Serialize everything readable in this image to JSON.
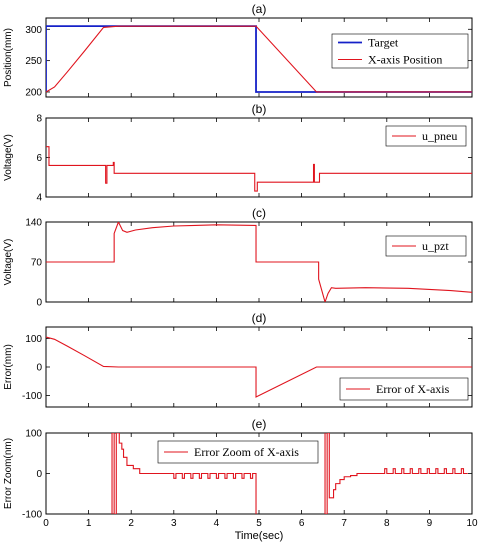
{
  "colors": {
    "red": "#e0141e",
    "blue": "#1520c8"
  },
  "xlabel": "Time(sec)",
  "x_ticks": [
    "0",
    "1",
    "2",
    "3",
    "4",
    "5",
    "6",
    "7",
    "8",
    "9",
    "10"
  ],
  "chart_data": [
    {
      "type": "line",
      "label": "(a)",
      "ylabel": "Position(mm)",
      "ylim": [
        192,
        318
      ],
      "yticks": [
        200,
        250,
        300
      ],
      "legend_placement": "top-right",
      "series": [
        {
          "name": "Target",
          "color": "#1520c8",
          "x": [
            0,
            0,
            4.93,
            4.93,
            10
          ],
          "y": [
            200,
            305,
            305,
            200,
            200
          ]
        },
        {
          "name": "X-axis Position",
          "color": "#e0141e",
          "x": [
            0,
            0.2,
            0.5,
            0.9,
            1.35,
            1.7,
            4.93,
            6.35,
            10
          ],
          "y": [
            200,
            208,
            232,
            265,
            303,
            305,
            305,
            200,
            200
          ]
        }
      ]
    },
    {
      "type": "line",
      "label": "(b)",
      "ylabel": "Voltage(V)",
      "ylim": [
        4,
        8
      ],
      "yticks": [
        4,
        6,
        8
      ],
      "legend_placement": "top-right",
      "series": [
        {
          "name": "u_pneu",
          "color": "#e0141e",
          "x": [
            0,
            0.07,
            0.07,
            1.4,
            1.4,
            1.43,
            1.43,
            1.58,
            1.58,
            1.6,
            1.6,
            1.62,
            1.62,
            4.9,
            4.9,
            4.96,
            4.96,
            5.0,
            5.0,
            6.28,
            6.28,
            6.3,
            6.3,
            6.42,
            6.42,
            6.45,
            6.45,
            10
          ],
          "y": [
            6.55,
            6.55,
            5.6,
            5.6,
            4.7,
            4.7,
            5.6,
            5.6,
            5.75,
            5.75,
            5.2,
            5.2,
            5.2,
            5.2,
            4.3,
            4.3,
            4.75,
            4.75,
            4.75,
            4.75,
            5.65,
            5.65,
            4.75,
            4.75,
            5.2,
            5.2,
            5.2,
            5.2
          ]
        }
      ]
    },
    {
      "type": "line",
      "label": "(c)",
      "ylabel": "Voltage(V)",
      "ylim": [
        0,
        140
      ],
      "yticks": [
        0,
        70,
        140
      ],
      "legend_placement": "top-right",
      "series": [
        {
          "name": "u_pzt",
          "color": "#e0141e",
          "x": [
            0,
            1.6,
            1.6,
            1.7,
            1.8,
            1.9,
            2.1,
            2.5,
            3.0,
            3.5,
            4.0,
            4.9,
            4.93,
            4.93,
            6.4,
            6.4,
            6.55,
            6.62,
            6.7,
            6.8,
            7.5,
            8.5,
            9.5,
            10
          ],
          "y": [
            70,
            70,
            120,
            140,
            125,
            122,
            126,
            130,
            133,
            134,
            135,
            134,
            134,
            70,
            70,
            40,
            0,
            15,
            25,
            24,
            25,
            24,
            20,
            17
          ]
        }
      ]
    },
    {
      "type": "line",
      "label": "(d)",
      "ylabel": "Error(mm)",
      "ylim": [
        -140,
        140
      ],
      "yticks": [
        -100,
        0,
        100
      ],
      "legend_placement": "bottom-right",
      "series": [
        {
          "name": "Error of X-axis",
          "color": "#e0141e",
          "x": [
            0,
            0.2,
            0.5,
            0.9,
            1.35,
            1.7,
            4.93,
            4.93,
            6.35,
            10
          ],
          "y": [
            105,
            97,
            73,
            40,
            2,
            0,
            0,
            -105,
            0,
            0
          ]
        }
      ]
    },
    {
      "type": "line",
      "label": "(e)",
      "ylabel": "Error Zoom(nm)",
      "ylim": [
        -100,
        100
      ],
      "yticks": [
        -100,
        0,
        100
      ],
      "legend_placement": "top-center",
      "series": [
        {
          "name": "Error Zoom of X-axis",
          "color": "#e0141e",
          "x": [
            1.55,
            1.55,
            1.6,
            1.6,
            1.65,
            1.65,
            1.72,
            1.72,
            1.78,
            1.78,
            1.82,
            1.82,
            1.9,
            1.9,
            2.05,
            2.05,
            2.2,
            2.2,
            2.3,
            2.3,
            2.45,
            2.45,
            2.6,
            3.0,
            3.0,
            3.05,
            3.05,
            3.2,
            3.2,
            3.25,
            3.25,
            3.4,
            3.4,
            3.45,
            3.45,
            3.6,
            3.6,
            3.65,
            3.65,
            3.8,
            3.8,
            3.85,
            3.85,
            4.0,
            4.0,
            4.05,
            4.05,
            4.2,
            4.2,
            4.25,
            4.25,
            4.4,
            4.4,
            4.45,
            4.45,
            4.6,
            4.6,
            4.65,
            4.65,
            4.8,
            4.8,
            4.85,
            4.85,
            4.93,
            4.93
          ],
          "y": [
            -100,
            100,
            100,
            -100,
            -100,
            100,
            100,
            75,
            75,
            60,
            60,
            40,
            40,
            20,
            20,
            12,
            12,
            0,
            0,
            0,
            0,
            0,
            0,
            0,
            -12,
            -12,
            0,
            0,
            -12,
            -12,
            0,
            0,
            -12,
            -12,
            0,
            0,
            -12,
            -12,
            0,
            0,
            -12,
            -12,
            0,
            0,
            -12,
            -12,
            0,
            0,
            -12,
            -12,
            0,
            0,
            -12,
            -12,
            0,
            0,
            -12,
            -12,
            0,
            0,
            -12,
            -12,
            0,
            0,
            -100
          ]
        },
        {
          "name": "",
          "color": "#e0141e",
          "x": [
            6.55,
            6.55,
            6.6,
            6.6,
            6.65,
            6.65,
            6.75,
            6.75,
            6.8,
            6.8,
            6.9,
            6.9,
            7.0,
            7.0,
            7.15,
            7.15,
            7.3,
            7.3,
            7.5,
            7.5,
            7.95,
            7.95,
            8.0,
            8.0,
            8.15,
            8.15,
            8.2,
            8.2,
            8.35,
            8.35,
            8.4,
            8.4,
            8.55,
            8.55,
            8.6,
            8.6,
            8.75,
            8.75,
            8.8,
            8.8,
            8.95,
            8.95,
            9.0,
            9.0,
            9.15,
            9.15,
            9.2,
            9.2,
            9.35,
            9.35,
            9.4,
            9.4,
            9.55,
            9.55,
            9.6,
            9.6,
            9.75,
            9.75,
            9.8,
            9.8,
            9.9
          ],
          "y": [
            100,
            -100,
            -100,
            100,
            100,
            -60,
            -60,
            -40,
            -40,
            -25,
            -25,
            -15,
            -15,
            -8,
            -8,
            -5,
            -5,
            0,
            0,
            0,
            0,
            12,
            12,
            0,
            0,
            12,
            12,
            0,
            0,
            12,
            12,
            0,
            0,
            12,
            12,
            0,
            0,
            12,
            12,
            0,
            0,
            12,
            12,
            0,
            0,
            12,
            12,
            0,
            0,
            12,
            12,
            0,
            0,
            12,
            12,
            0,
            0,
            12,
            12,
            0,
            0
          ]
        }
      ]
    }
  ]
}
